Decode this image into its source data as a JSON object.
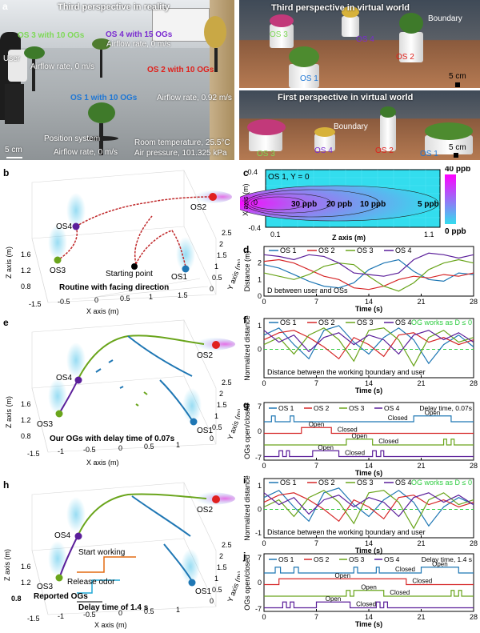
{
  "panels": {
    "a": "a",
    "b": "b",
    "c": "c",
    "d": "d",
    "e": "e",
    "f": "f",
    "g": "g",
    "h": "h",
    "i": "i",
    "j": "j"
  },
  "photo": {
    "title": "Third perspective in reality",
    "os3": "OS 3 with 10 OGs",
    "os4": "OS 4 with 15 OGs",
    "os4_air": "Airflow rate, 0 m/s",
    "user": "User",
    "os3_air": "Airflow rate, 0 m/s",
    "os2": "OS 2 with 10 OGs",
    "os1": "OS 1 with 10 OGs",
    "os1_air": "Airflow rate, 0.92 m/s",
    "scale": "5 cm",
    "position": "Position system",
    "position_air": "Airflow rate, 0 m/s",
    "temp": "Room temperature, 25.5°C",
    "pressure": "Air pressure, 101.325 kPa"
  },
  "vr_top": {
    "title": "Third perspective in virtual world",
    "boundary": "Boundary",
    "os3": "OS 3",
    "os4": "OS 4",
    "os2": "OS 2",
    "os1": "OS 1",
    "scale": "5 cm"
  },
  "vr_bot": {
    "title": "First perspective in virtual world",
    "boundary": "Boundary",
    "os3": "OS 3",
    "os4": "OS 4",
    "os2": "OS 2",
    "os1": "OS 1",
    "scale": "5 cm"
  },
  "three_d": {
    "b": {
      "caption": "Routine with facing direction",
      "start": "Starting point",
      "os1": "OS1",
      "os2": "OS2",
      "os3": "OS3",
      "os4": "OS4",
      "xaxis": "X axis (m)",
      "yaxis": "Y axis (m)",
      "zaxis": "Z axis (m)",
      "xticks": [
        "-1.5",
        "-0.5",
        "0",
        "0.5",
        "1",
        "1.5"
      ],
      "yticks": [
        "0",
        "0.5",
        "1",
        "1.5",
        "2",
        "2.5"
      ],
      "zticks": [
        "0.8",
        "1.2",
        "1.6"
      ]
    },
    "e": {
      "caption": "Our OGs with delay time of 0.07s",
      "os1": "OS1",
      "os2": "OS2",
      "os3": "OS3",
      "os4": "OS4",
      "xaxis": "X axis (m)",
      "yaxis": "Y axis (m)",
      "zaxis": "Z axis (m)",
      "xticks": [
        "-1.5",
        "-1",
        "-0.5",
        "0",
        "0.5",
        "1"
      ],
      "yticks": [
        "0",
        "0.5",
        "1",
        "1.5",
        "2",
        "2.5"
      ],
      "zticks": [
        "0.8",
        "1.2",
        "1.6"
      ]
    },
    "h": {
      "start": "Start working",
      "release": "Release odor",
      "reported": "Reported OGs",
      "delay": "Delay time of 1.4 s",
      "os1": "OS1",
      "os2": "OS2",
      "os3": "OS3",
      "os4": "OS4",
      "xaxis": "X axis (m)",
      "yaxis": "Y axis (m)",
      "zaxis": "Z axis (m)",
      "xticks": [
        "-1.5",
        "-1",
        "-0.5",
        "0",
        "0.5",
        "1"
      ],
      "yticks": [
        "0",
        "0.5",
        "1",
        "1.5",
        "2",
        "2.5"
      ],
      "zticks": [
        "0.8",
        "1.2",
        "1.6"
      ]
    }
  },
  "chart_data": [
    {
      "id": "c",
      "type": "heatmap",
      "annotation": "OS 1, Y = 0",
      "xlabel": "Z axis (m)",
      "ylabel": "X axis (m)",
      "xticks": [
        "0.1",
        "1.1"
      ],
      "yticks": [
        "0.4",
        "0",
        "-0.4"
      ],
      "contours": [
        "30 ppb",
        "20 ppb",
        "10 ppb",
        "5 ppb"
      ],
      "colorbar": {
        "max": "40 ppb",
        "min": "0 ppb"
      },
      "colors": {
        "high": "#ff00ff",
        "low": "#33ddee"
      }
    },
    {
      "id": "d",
      "type": "line",
      "annotation": "D between user and OSs",
      "xlabel": "Time (s)",
      "ylabel": "Distance (m)",
      "xticks": [
        "0",
        "7",
        "14",
        "21",
        "28"
      ],
      "yticks": [
        "0",
        "1",
        "2"
      ],
      "xlim": [
        0,
        28
      ],
      "ylim": [
        0,
        3
      ],
      "legend": [
        "OS 1",
        "OS 2",
        "OS 3",
        "OS 4"
      ],
      "colors": [
        "#1f77b4",
        "#d62728",
        "#6aa51c",
        "#5b1f9a"
      ],
      "series": [
        {
          "name": "OS 1",
          "x": [
            0,
            2,
            4,
            6,
            8,
            10,
            12,
            14,
            16,
            18,
            20,
            22,
            24,
            26,
            28
          ],
          "values": [
            1.9,
            1.7,
            1.3,
            0.9,
            0.6,
            0.5,
            0.8,
            1.6,
            2.0,
            2.2,
            1.5,
            1.0,
            0.9,
            1.4,
            1.3
          ]
        },
        {
          "name": "OS 2",
          "x": [
            0,
            2,
            4,
            6,
            8,
            10,
            12,
            14,
            16,
            18,
            20,
            22,
            24,
            26,
            28
          ],
          "values": [
            2.1,
            2.2,
            2.0,
            1.6,
            1.2,
            1.0,
            0.5,
            0.4,
            0.6,
            1.0,
            1.2,
            1.1,
            1.3,
            1.2,
            1.4
          ]
        },
        {
          "name": "OS 3",
          "x": [
            0,
            2,
            4,
            6,
            8,
            10,
            12,
            14,
            16,
            18,
            20,
            22,
            24,
            26,
            28
          ],
          "values": [
            1.4,
            1.2,
            1.0,
            1.3,
            1.8,
            2.0,
            1.9,
            1.2,
            0.6,
            0.3,
            0.8,
            1.6,
            2.0,
            2.2,
            2.0
          ]
        },
        {
          "name": "OS 4",
          "x": [
            0,
            2,
            4,
            6,
            8,
            10,
            12,
            14,
            16,
            18,
            20,
            22,
            24,
            26,
            28
          ],
          "values": [
            2.5,
            2.4,
            2.2,
            2.5,
            2.4,
            2.0,
            1.4,
            1.3,
            1.2,
            1.4,
            2.2,
            2.6,
            2.5,
            2.3,
            2.5
          ]
        }
      ]
    },
    {
      "id": "f",
      "type": "line",
      "annotation": "Distance between the working boundary and user",
      "note": "OG works as D ≤ 0",
      "xlabel": "Time (s)",
      "ylabel": "Normalized distance",
      "xticks": [
        "0",
        "7",
        "14",
        "21",
        "28"
      ],
      "yticks": [
        "1",
        "0"
      ],
      "xlim": [
        0,
        28
      ],
      "ylim": [
        -1.2,
        1.3
      ],
      "legend": [
        "OS 1",
        "OS 2",
        "OS 3",
        "OS 4"
      ],
      "colors": [
        "#1f77b4",
        "#d62728",
        "#6aa51c",
        "#5b1f9a"
      ],
      "series": [
        {
          "name": "OS 1",
          "x": [
            0,
            2,
            4,
            6,
            8,
            10,
            12,
            14,
            16,
            18,
            20,
            22,
            24,
            26,
            28
          ],
          "values": [
            0.6,
            0.9,
            0.2,
            -0.4,
            0.8,
            1.0,
            0.3,
            -0.2,
            0.5,
            0.9,
            0.4,
            -0.6,
            0.2,
            0.6,
            0.1
          ]
        },
        {
          "name": "OS 2",
          "x": [
            0,
            2,
            4,
            6,
            8,
            10,
            12,
            14,
            16,
            18,
            20,
            22,
            24,
            26,
            28
          ],
          "values": [
            0.4,
            0.7,
            0.8,
            0.5,
            0.1,
            -0.4,
            0.5,
            0.2,
            -0.3,
            0.6,
            0.7,
            0.3,
            0.5,
            0.2,
            0.4
          ]
        },
        {
          "name": "OS 3",
          "x": [
            0,
            2,
            4,
            6,
            8,
            10,
            12,
            14,
            16,
            18,
            20,
            22,
            24,
            26,
            28
          ],
          "values": [
            0.2,
            0.5,
            -0.2,
            0.6,
            0.9,
            0.4,
            -0.5,
            0.8,
            0.9,
            0.4,
            -0.7,
            0.5,
            0.8,
            0.3,
            0.5
          ]
        },
        {
          "name": "OS 4",
          "x": [
            0,
            2,
            4,
            6,
            8,
            10,
            12,
            14,
            16,
            18,
            20,
            22,
            24,
            26,
            28
          ],
          "values": [
            0.8,
            0.3,
            0.6,
            -0.1,
            0.5,
            0.7,
            0.2,
            0.6,
            0.4,
            -0.2,
            0.6,
            0.8,
            0.4,
            0.7,
            0.3
          ]
        }
      ]
    },
    {
      "id": "g",
      "type": "line",
      "annotation": "Delay time, 0.07s",
      "xlabel": "Time (s)",
      "ylabel": "OGs open/closed",
      "xticks": [
        "0",
        "7",
        "14",
        "21",
        "28"
      ],
      "yticks": [
        "7",
        "0",
        "-7"
      ],
      "xlim": [
        0,
        28
      ],
      "legend": [
        "OS 1",
        "OS 2",
        "OS 3",
        "OS 4"
      ],
      "colors": [
        "#1f77b4",
        "#d62728",
        "#6aa51c",
        "#5b1f9a"
      ],
      "state_labels": [
        {
          "text": "Open",
          "series": 0
        },
        {
          "text": "Closed",
          "series": 0
        },
        {
          "text": "Open",
          "series": 1
        },
        {
          "text": "Closed",
          "series": 1
        },
        {
          "text": "Open",
          "series": 2
        },
        {
          "text": "Closed",
          "series": 2
        },
        {
          "text": "Open",
          "series": 3
        },
        {
          "text": "Closed",
          "series": 3
        }
      ],
      "series": [
        {
          "name": "OS 1",
          "open": [
            [
              1,
              1.5
            ],
            [
              3.5,
              4
            ],
            [
              20,
              25
            ]
          ]
        },
        {
          "name": "OS 2",
          "open": [
            [
              5,
              9
            ]
          ]
        },
        {
          "name": "OS 3",
          "open": [
            [
              11,
              14.5
            ],
            [
              24,
              24.4
            ],
            [
              25,
              25.4
            ]
          ]
        },
        {
          "name": "OS 4",
          "open": [
            [
              2,
              2.5
            ],
            [
              3,
              3.4
            ],
            [
              6.5,
              10
            ],
            [
              14.5,
              15
            ],
            [
              15.6,
              16
            ]
          ]
        }
      ]
    },
    {
      "id": "i",
      "type": "line",
      "annotation": "Distance between the working boundary and user",
      "note": "OG works as D ≤ 0",
      "xlabel": "Time (s)",
      "ylabel": "Normalized distance",
      "xticks": [
        "0",
        "7",
        "14",
        "21",
        "28"
      ],
      "yticks": [
        "1",
        "0",
        "-1"
      ],
      "xlim": [
        0,
        28
      ],
      "ylim": [
        -1.2,
        1.3
      ],
      "legend": [
        "OS 1",
        "OS 2",
        "OS 3",
        "OS 4"
      ],
      "colors": [
        "#1f77b4",
        "#d62728",
        "#6aa51c",
        "#5b1f9a"
      ],
      "series": [
        {
          "name": "OS 1",
          "x": [
            0,
            2,
            4,
            6,
            8,
            10,
            12,
            14,
            16,
            18,
            20,
            22,
            24,
            26,
            28
          ],
          "values": [
            0.5,
            0.8,
            0.1,
            -0.5,
            0.7,
            0.9,
            0.2,
            -0.3,
            0.4,
            0.8,
            0.3,
            -0.7,
            0.1,
            0.5,
            0.2
          ]
        },
        {
          "name": "OS 2",
          "x": [
            0,
            2,
            4,
            6,
            8,
            10,
            12,
            14,
            16,
            18,
            20,
            22,
            24,
            26,
            28
          ],
          "values": [
            0.3,
            0.6,
            0.7,
            0.4,
            0.0,
            -0.5,
            0.4,
            0.1,
            -0.4,
            0.5,
            0.6,
            0.2,
            0.4,
            0.1,
            0.3
          ]
        },
        {
          "name": "OS 3",
          "x": [
            0,
            2,
            4,
            6,
            8,
            10,
            12,
            14,
            16,
            18,
            20,
            22,
            24,
            26,
            28
          ],
          "values": [
            0.1,
            0.4,
            -0.3,
            0.5,
            0.8,
            0.3,
            -0.6,
            0.7,
            0.8,
            0.3,
            -0.8,
            0.4,
            0.7,
            0.2,
            0.4
          ]
        },
        {
          "name": "OS 4",
          "x": [
            0,
            2,
            4,
            6,
            8,
            10,
            12,
            14,
            16,
            18,
            20,
            22,
            24,
            26,
            28
          ],
          "values": [
            0.7,
            0.2,
            0.5,
            -0.2,
            0.4,
            0.6,
            0.1,
            0.5,
            0.3,
            -0.3,
            0.5,
            0.7,
            0.3,
            0.6,
            0.2
          ]
        }
      ]
    },
    {
      "id": "j",
      "type": "line",
      "annotation": "Delay time, 1.4 s",
      "xlabel": "Time (s)",
      "ylabel": "OGs open/closed",
      "xticks": [
        "0",
        "7",
        "14",
        "21",
        "28"
      ],
      "yticks": [
        "7",
        "0",
        "-7"
      ],
      "xlim": [
        0,
        28
      ],
      "legend": [
        "OS 1",
        "OS 2",
        "OS 3",
        "OS 4"
      ],
      "colors": [
        "#1f77b4",
        "#d62728",
        "#6aa51c",
        "#5b1f9a"
      ],
      "state_labels": [
        {
          "text": "Open",
          "series": 0
        },
        {
          "text": "Closed",
          "series": 0
        },
        {
          "text": "Open",
          "series": 1
        },
        {
          "text": "Closed",
          "series": 1
        },
        {
          "text": "Open",
          "series": 2
        },
        {
          "text": "Closed",
          "series": 2
        },
        {
          "text": "Open",
          "series": 3
        },
        {
          "text": "Closed",
          "series": 3
        }
      ],
      "series": [
        {
          "name": "OS 1",
          "open": [
            [
              1.5,
              2.2
            ],
            [
              4,
              4.6
            ],
            [
              12,
              12.5
            ],
            [
              15,
              15.4
            ],
            [
              21,
              26
            ]
          ]
        },
        {
          "name": "OS 2",
          "open": [
            [
              2,
              19
            ]
          ]
        },
        {
          "name": "OS 3",
          "open": [
            [
              11,
              11.5
            ],
            [
              12,
              16
            ],
            [
              25,
              25.4
            ],
            [
              26,
              26.4
            ]
          ]
        },
        {
          "name": "OS 4",
          "open": [
            [
              2.5,
              3
            ],
            [
              3.5,
              4
            ],
            [
              7,
              11.5
            ],
            [
              15,
              15.5
            ],
            [
              16,
              16.5
            ]
          ]
        }
      ]
    }
  ]
}
